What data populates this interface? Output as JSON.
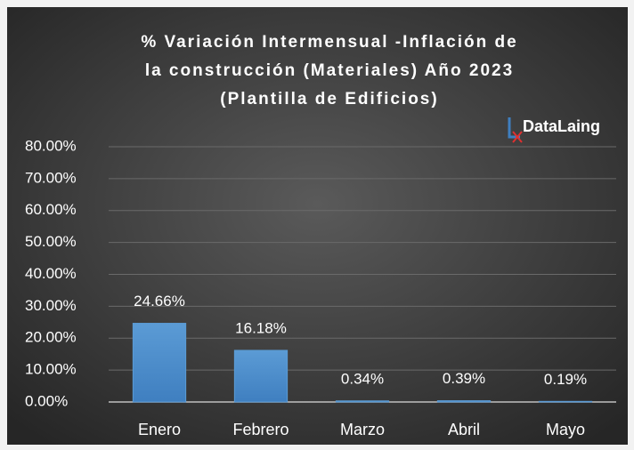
{
  "chart_data": {
    "type": "bar",
    "title_lines": [
      "% Variación Intermensual -Inflación de",
      "la construcción (Materiales) Año 2023",
      "(Plantilla de Edificios)"
    ],
    "logo": "DataLaing",
    "categories": [
      "Enero",
      "Febrero",
      "Marzo",
      "Abril",
      "Mayo"
    ],
    "values": [
      24.66,
      16.18,
      0.34,
      0.39,
      0.19
    ],
    "value_labels": [
      "24.66%",
      "16.18%",
      "0.34%",
      "0.39%",
      "0.19%"
    ],
    "color": "#5b9bd5",
    "ylim": [
      0,
      80
    ],
    "yticks": [
      {
        "value": 0,
        "label": "0.00%"
      },
      {
        "value": 10,
        "label": "10.00%"
      },
      {
        "value": 20,
        "label": "20.00%"
      },
      {
        "value": 30,
        "label": "30.00%"
      },
      {
        "value": 40,
        "label": "40.00%"
      },
      {
        "value": 50,
        "label": "50.00%"
      },
      {
        "value": 60,
        "label": "60.00%"
      },
      {
        "value": 70,
        "label": "70.00%"
      },
      {
        "value": 80,
        "label": "80.00%"
      }
    ],
    "grid": true
  }
}
